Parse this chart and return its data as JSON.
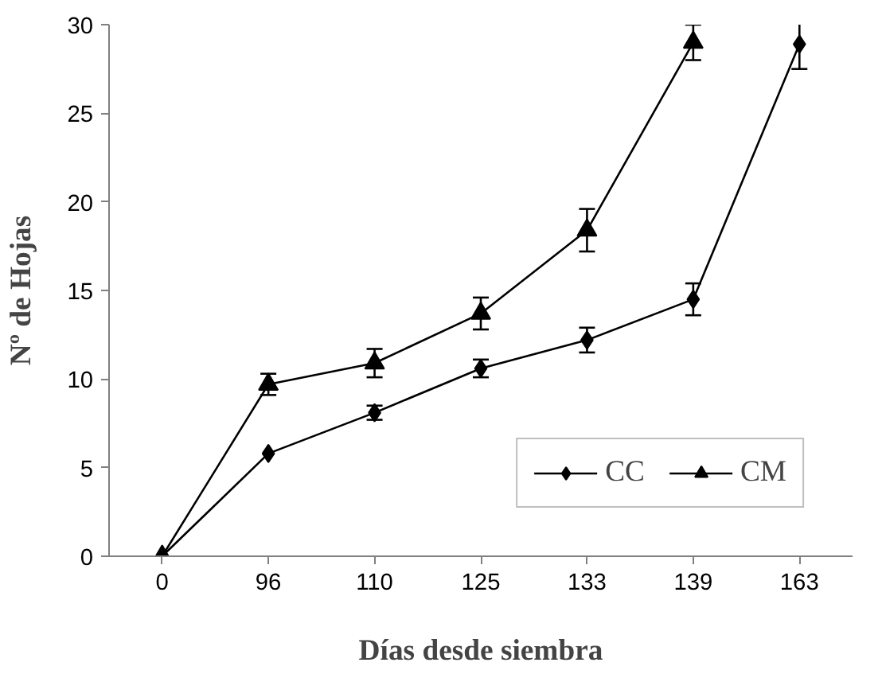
{
  "chart_data": {
    "type": "line",
    "xlabel": "Días desde siembra",
    "ylabel": "Nº de Hojas",
    "categories": [
      "0",
      "96",
      "110",
      "125",
      "133",
      "139",
      "163"
    ],
    "series": [
      {
        "name": "CC",
        "color": "#000000",
        "marker": "diamond",
        "values": [
          0,
          5.8,
          8.1,
          10.6,
          12.2,
          14.5,
          28.9
        ],
        "errors": [
          null,
          null,
          0.4,
          0.5,
          0.7,
          0.9,
          1.4
        ]
      },
      {
        "name": "CM",
        "color": "#000000",
        "marker": "triangle",
        "values": [
          0,
          9.7,
          10.9,
          13.7,
          18.4,
          29.0,
          null
        ],
        "errors": [
          null,
          0.6,
          0.8,
          0.9,
          1.2,
          1.0,
          null
        ]
      }
    ],
    "ylim": [
      0,
      30
    ],
    "yticks": [
      0,
      5,
      10,
      15,
      20,
      25,
      30
    ],
    "grid": false,
    "legend": "bottom right",
    "line_style": "solid"
  }
}
